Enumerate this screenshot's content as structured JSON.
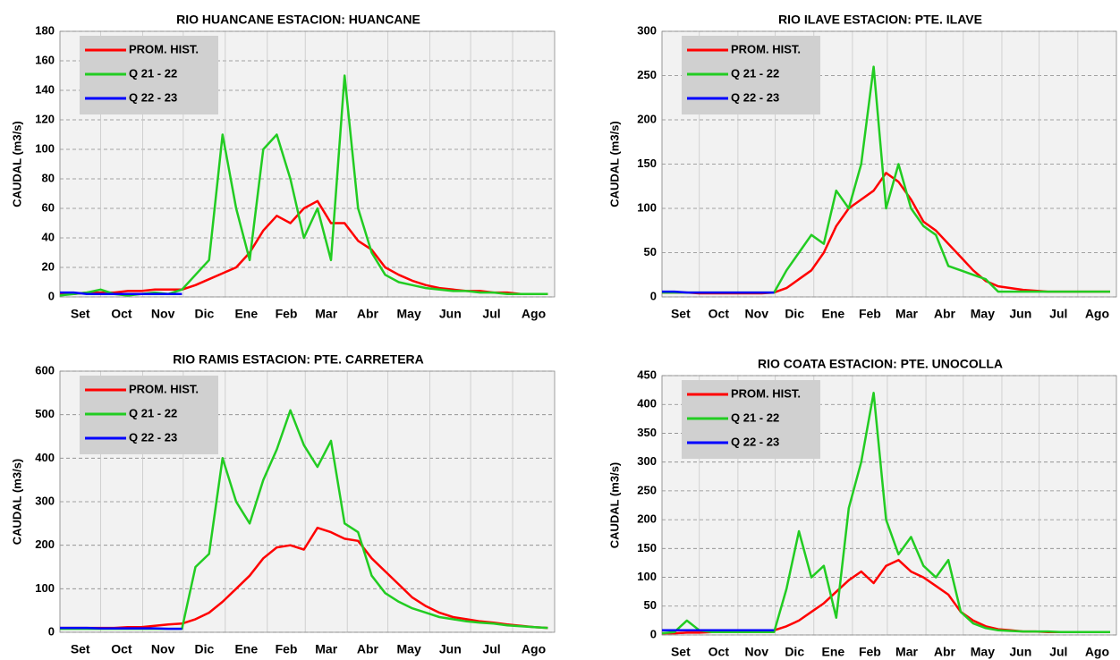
{
  "chart_data": [
    {
      "type": "line",
      "title": "RIO HUANCANE ESTACION: HUANCANE",
      "y_label": "CAUDAL (m3/s)",
      "x": [
        0,
        10,
        20,
        30,
        40,
        50,
        60,
        70,
        80,
        90,
        100,
        110,
        120,
        130,
        140,
        150,
        160,
        170,
        180,
        190,
        200,
        210,
        220,
        230,
        240,
        250,
        260,
        270,
        280,
        290,
        300,
        310,
        320,
        330,
        340,
        350,
        360
      ],
      "xlim": [
        0,
        365
      ],
      "xticks": [
        {
          "value": 0,
          "label": "Set"
        },
        {
          "value": 30,
          "label": "Oct"
        },
        {
          "value": 61,
          "label": "Nov"
        },
        {
          "value": 91,
          "label": "Dic"
        },
        {
          "value": 122,
          "label": "Ene"
        },
        {
          "value": 153,
          "label": "Feb"
        },
        {
          "value": 181,
          "label": "Mar"
        },
        {
          "value": 212,
          "label": "Abr"
        },
        {
          "value": 242,
          "label": "May"
        },
        {
          "value": 273,
          "label": "Jun"
        },
        {
          "value": 303,
          "label": "Jul"
        },
        {
          "value": 334,
          "label": "Ago"
        }
      ],
      "ylim": [
        0,
        180
      ],
      "yticks": [
        0,
        20,
        40,
        60,
        80,
        100,
        120,
        140,
        160,
        180
      ],
      "grid": true,
      "legend": "upper-left",
      "series": [
        {
          "name": "PROM. HIST.",
          "color": "#ff0000",
          "values": [
            2,
            2,
            3,
            3,
            3,
            4,
            4,
            5,
            5,
            5,
            8,
            12,
            16,
            20,
            30,
            45,
            55,
            50,
            60,
            65,
            50,
            50,
            38,
            32,
            20,
            15,
            11,
            8,
            6,
            5,
            4,
            4,
            3,
            3,
            2,
            2,
            2
          ]
        },
        {
          "name": "Q 21 - 22",
          "color": "#22cc22",
          "values": [
            1,
            2,
            3,
            5,
            2,
            1,
            2,
            3,
            2,
            5,
            15,
            25,
            110,
            60,
            25,
            100,
            110,
            80,
            40,
            60,
            25,
            150,
            60,
            30,
            15,
            10,
            8,
            6,
            5,
            4,
            4,
            3,
            3,
            2,
            2,
            2,
            2
          ]
        },
        {
          "name": "Q 22 - 23",
          "color": "#0000ff",
          "values": [
            3,
            3,
            2,
            2,
            2,
            2,
            2,
            2,
            2,
            2,
            null,
            null,
            null,
            null,
            null,
            null,
            null,
            null,
            null,
            null,
            null,
            null,
            null,
            null,
            null,
            null,
            null,
            null,
            null,
            null,
            null,
            null,
            null,
            null,
            null,
            null,
            null
          ]
        }
      ]
    },
    {
      "type": "line",
      "title": "RIO ILAVE ESTACION: PTE. ILAVE",
      "y_label": "CAUDAL (m3/s)",
      "x": [
        0,
        10,
        20,
        30,
        40,
        50,
        60,
        70,
        80,
        90,
        100,
        110,
        120,
        130,
        140,
        150,
        160,
        170,
        180,
        190,
        200,
        210,
        220,
        230,
        240,
        250,
        260,
        270,
        280,
        290,
        300,
        310,
        320,
        330,
        340,
        350,
        360
      ],
      "xlim": [
        0,
        365
      ],
      "xticks": [
        {
          "value": 0,
          "label": "Set"
        },
        {
          "value": 30,
          "label": "Oct"
        },
        {
          "value": 61,
          "label": "Nov"
        },
        {
          "value": 91,
          "label": "Dic"
        },
        {
          "value": 122,
          "label": "Ene"
        },
        {
          "value": 153,
          "label": "Feb"
        },
        {
          "value": 181,
          "label": "Mar"
        },
        {
          "value": 212,
          "label": "Abr"
        },
        {
          "value": 242,
          "label": "May"
        },
        {
          "value": 273,
          "label": "Jun"
        },
        {
          "value": 303,
          "label": "Jul"
        },
        {
          "value": 334,
          "label": "Ago"
        }
      ],
      "ylim": [
        0,
        300
      ],
      "yticks": [
        0,
        50,
        100,
        150,
        200,
        250,
        300
      ],
      "grid": true,
      "legend": "upper-left",
      "series": [
        {
          "name": "PROM. HIST.",
          "color": "#ff0000",
          "values": [
            5,
            5,
            5,
            4,
            4,
            4,
            4,
            4,
            4,
            5,
            10,
            20,
            30,
            50,
            80,
            100,
            110,
            120,
            140,
            130,
            110,
            85,
            75,
            60,
            45,
            30,
            18,
            12,
            10,
            8,
            7,
            6,
            6,
            6,
            6,
            6,
            6
          ]
        },
        {
          "name": "Q 21 - 22",
          "color": "#22cc22",
          "values": [
            5,
            5,
            5,
            5,
            5,
            5,
            5,
            5,
            5,
            5,
            30,
            50,
            70,
            60,
            120,
            100,
            150,
            260,
            100,
            150,
            100,
            80,
            70,
            35,
            30,
            25,
            20,
            6,
            6,
            6,
            6,
            6,
            6,
            6,
            6,
            6,
            6
          ]
        },
        {
          "name": "Q 22 - 23",
          "color": "#0000ff",
          "values": [
            6,
            6,
            5,
            5,
            5,
            5,
            5,
            5,
            5,
            5,
            null,
            null,
            null,
            null,
            null,
            null,
            null,
            null,
            null,
            null,
            null,
            null,
            null,
            null,
            null,
            null,
            null,
            null,
            null,
            null,
            null,
            null,
            null,
            null,
            null,
            null,
            null
          ]
        }
      ]
    },
    {
      "type": "line",
      "title": "RIO RAMIS ESTACION: PTE. CARRETERA",
      "y_label": "CAUDAL (m3/s)",
      "x": [
        0,
        10,
        20,
        30,
        40,
        50,
        60,
        70,
        80,
        90,
        100,
        110,
        120,
        130,
        140,
        150,
        160,
        170,
        180,
        190,
        200,
        210,
        220,
        230,
        240,
        250,
        260,
        270,
        280,
        290,
        300,
        310,
        320,
        330,
        340,
        350,
        360
      ],
      "xlim": [
        0,
        365
      ],
      "xticks": [
        {
          "value": 0,
          "label": "Set"
        },
        {
          "value": 30,
          "label": "Oct"
        },
        {
          "value": 61,
          "label": "Nov"
        },
        {
          "value": 91,
          "label": "Dic"
        },
        {
          "value": 122,
          "label": "Ene"
        },
        {
          "value": 153,
          "label": "Feb"
        },
        {
          "value": 181,
          "label": "Mar"
        },
        {
          "value": 212,
          "label": "Abr"
        },
        {
          "value": 242,
          "label": "May"
        },
        {
          "value": 273,
          "label": "Jun"
        },
        {
          "value": 303,
          "label": "Jul"
        },
        {
          "value": 334,
          "label": "Ago"
        }
      ],
      "ylim": [
        0,
        600
      ],
      "yticks": [
        0,
        100,
        200,
        300,
        400,
        500,
        600
      ],
      "grid": true,
      "legend": "upper-left",
      "series": [
        {
          "name": "PROM. HIST.",
          "color": "#ff0000",
          "values": [
            10,
            10,
            10,
            10,
            10,
            12,
            12,
            15,
            18,
            20,
            30,
            45,
            70,
            100,
            130,
            170,
            195,
            200,
            190,
            240,
            230,
            215,
            210,
            170,
            140,
            110,
            80,
            60,
            45,
            35,
            30,
            25,
            22,
            18,
            15,
            12,
            10
          ]
        },
        {
          "name": "Q 21 - 22",
          "color": "#22cc22",
          "values": [
            8,
            8,
            8,
            8,
            8,
            8,
            8,
            8,
            8,
            8,
            150,
            180,
            400,
            300,
            250,
            350,
            420,
            510,
            430,
            380,
            440,
            250,
            230,
            130,
            90,
            70,
            55,
            45,
            35,
            30,
            25,
            22,
            20,
            16,
            14,
            12,
            10
          ]
        },
        {
          "name": "Q 22 - 23",
          "color": "#0000ff",
          "values": [
            10,
            10,
            10,
            9,
            9,
            9,
            9,
            9,
            8,
            8,
            null,
            null,
            null,
            null,
            null,
            null,
            null,
            null,
            null,
            null,
            null,
            null,
            null,
            null,
            null,
            null,
            null,
            null,
            null,
            null,
            null,
            null,
            null,
            null,
            null,
            null,
            null
          ]
        }
      ]
    },
    {
      "type": "line",
      "title": "RIO COATA ESTACION: PTE. UNOCOLLA",
      "y_label": "CAUDAL (m3/s)",
      "x": [
        0,
        10,
        20,
        30,
        40,
        50,
        60,
        70,
        80,
        90,
        100,
        110,
        120,
        130,
        140,
        150,
        160,
        170,
        180,
        190,
        200,
        210,
        220,
        230,
        240,
        250,
        260,
        270,
        280,
        290,
        300,
        310,
        320,
        330,
        340,
        350,
        360
      ],
      "xlim": [
        0,
        365
      ],
      "xticks": [
        {
          "value": 0,
          "label": "Set"
        },
        {
          "value": 30,
          "label": "Oct"
        },
        {
          "value": 61,
          "label": "Nov"
        },
        {
          "value": 91,
          "label": "Dic"
        },
        {
          "value": 122,
          "label": "Ene"
        },
        {
          "value": 153,
          "label": "Feb"
        },
        {
          "value": 181,
          "label": "Mar"
        },
        {
          "value": 212,
          "label": "Abr"
        },
        {
          "value": 242,
          "label": "May"
        },
        {
          "value": 273,
          "label": "Jun"
        },
        {
          "value": 303,
          "label": "Jul"
        },
        {
          "value": 334,
          "label": "Ago"
        }
      ],
      "ylim": [
        0,
        450
      ],
      "yticks": [
        0,
        50,
        100,
        150,
        200,
        250,
        300,
        350,
        400,
        450
      ],
      "grid": true,
      "legend": "upper-left",
      "series": [
        {
          "name": "PROM. HIST.",
          "color": "#ff0000",
          "values": [
            3,
            3,
            4,
            4,
            5,
            5,
            5,
            5,
            6,
            8,
            15,
            25,
            40,
            55,
            75,
            95,
            110,
            90,
            120,
            130,
            110,
            100,
            85,
            70,
            40,
            25,
            15,
            10,
            8,
            6,
            6,
            5,
            5,
            5,
            5,
            5,
            5
          ]
        },
        {
          "name": "Q 21 - 22",
          "color": "#22cc22",
          "values": [
            3,
            5,
            25,
            8,
            5,
            5,
            5,
            5,
            5,
            5,
            80,
            180,
            100,
            120,
            30,
            220,
            300,
            420,
            200,
            140,
            170,
            120,
            100,
            130,
            40,
            20,
            12,
            8,
            7,
            6,
            6,
            6,
            5,
            5,
            5,
            5,
            5
          ]
        },
        {
          "name": "Q 22 - 23",
          "color": "#0000ff",
          "values": [
            8,
            8,
            8,
            8,
            8,
            8,
            8,
            8,
            8,
            8,
            null,
            null,
            null,
            null,
            null,
            null,
            null,
            null,
            null,
            null,
            null,
            null,
            null,
            null,
            null,
            null,
            null,
            null,
            null,
            null,
            null,
            null,
            null,
            null,
            null,
            null,
            null
          ]
        }
      ]
    }
  ]
}
